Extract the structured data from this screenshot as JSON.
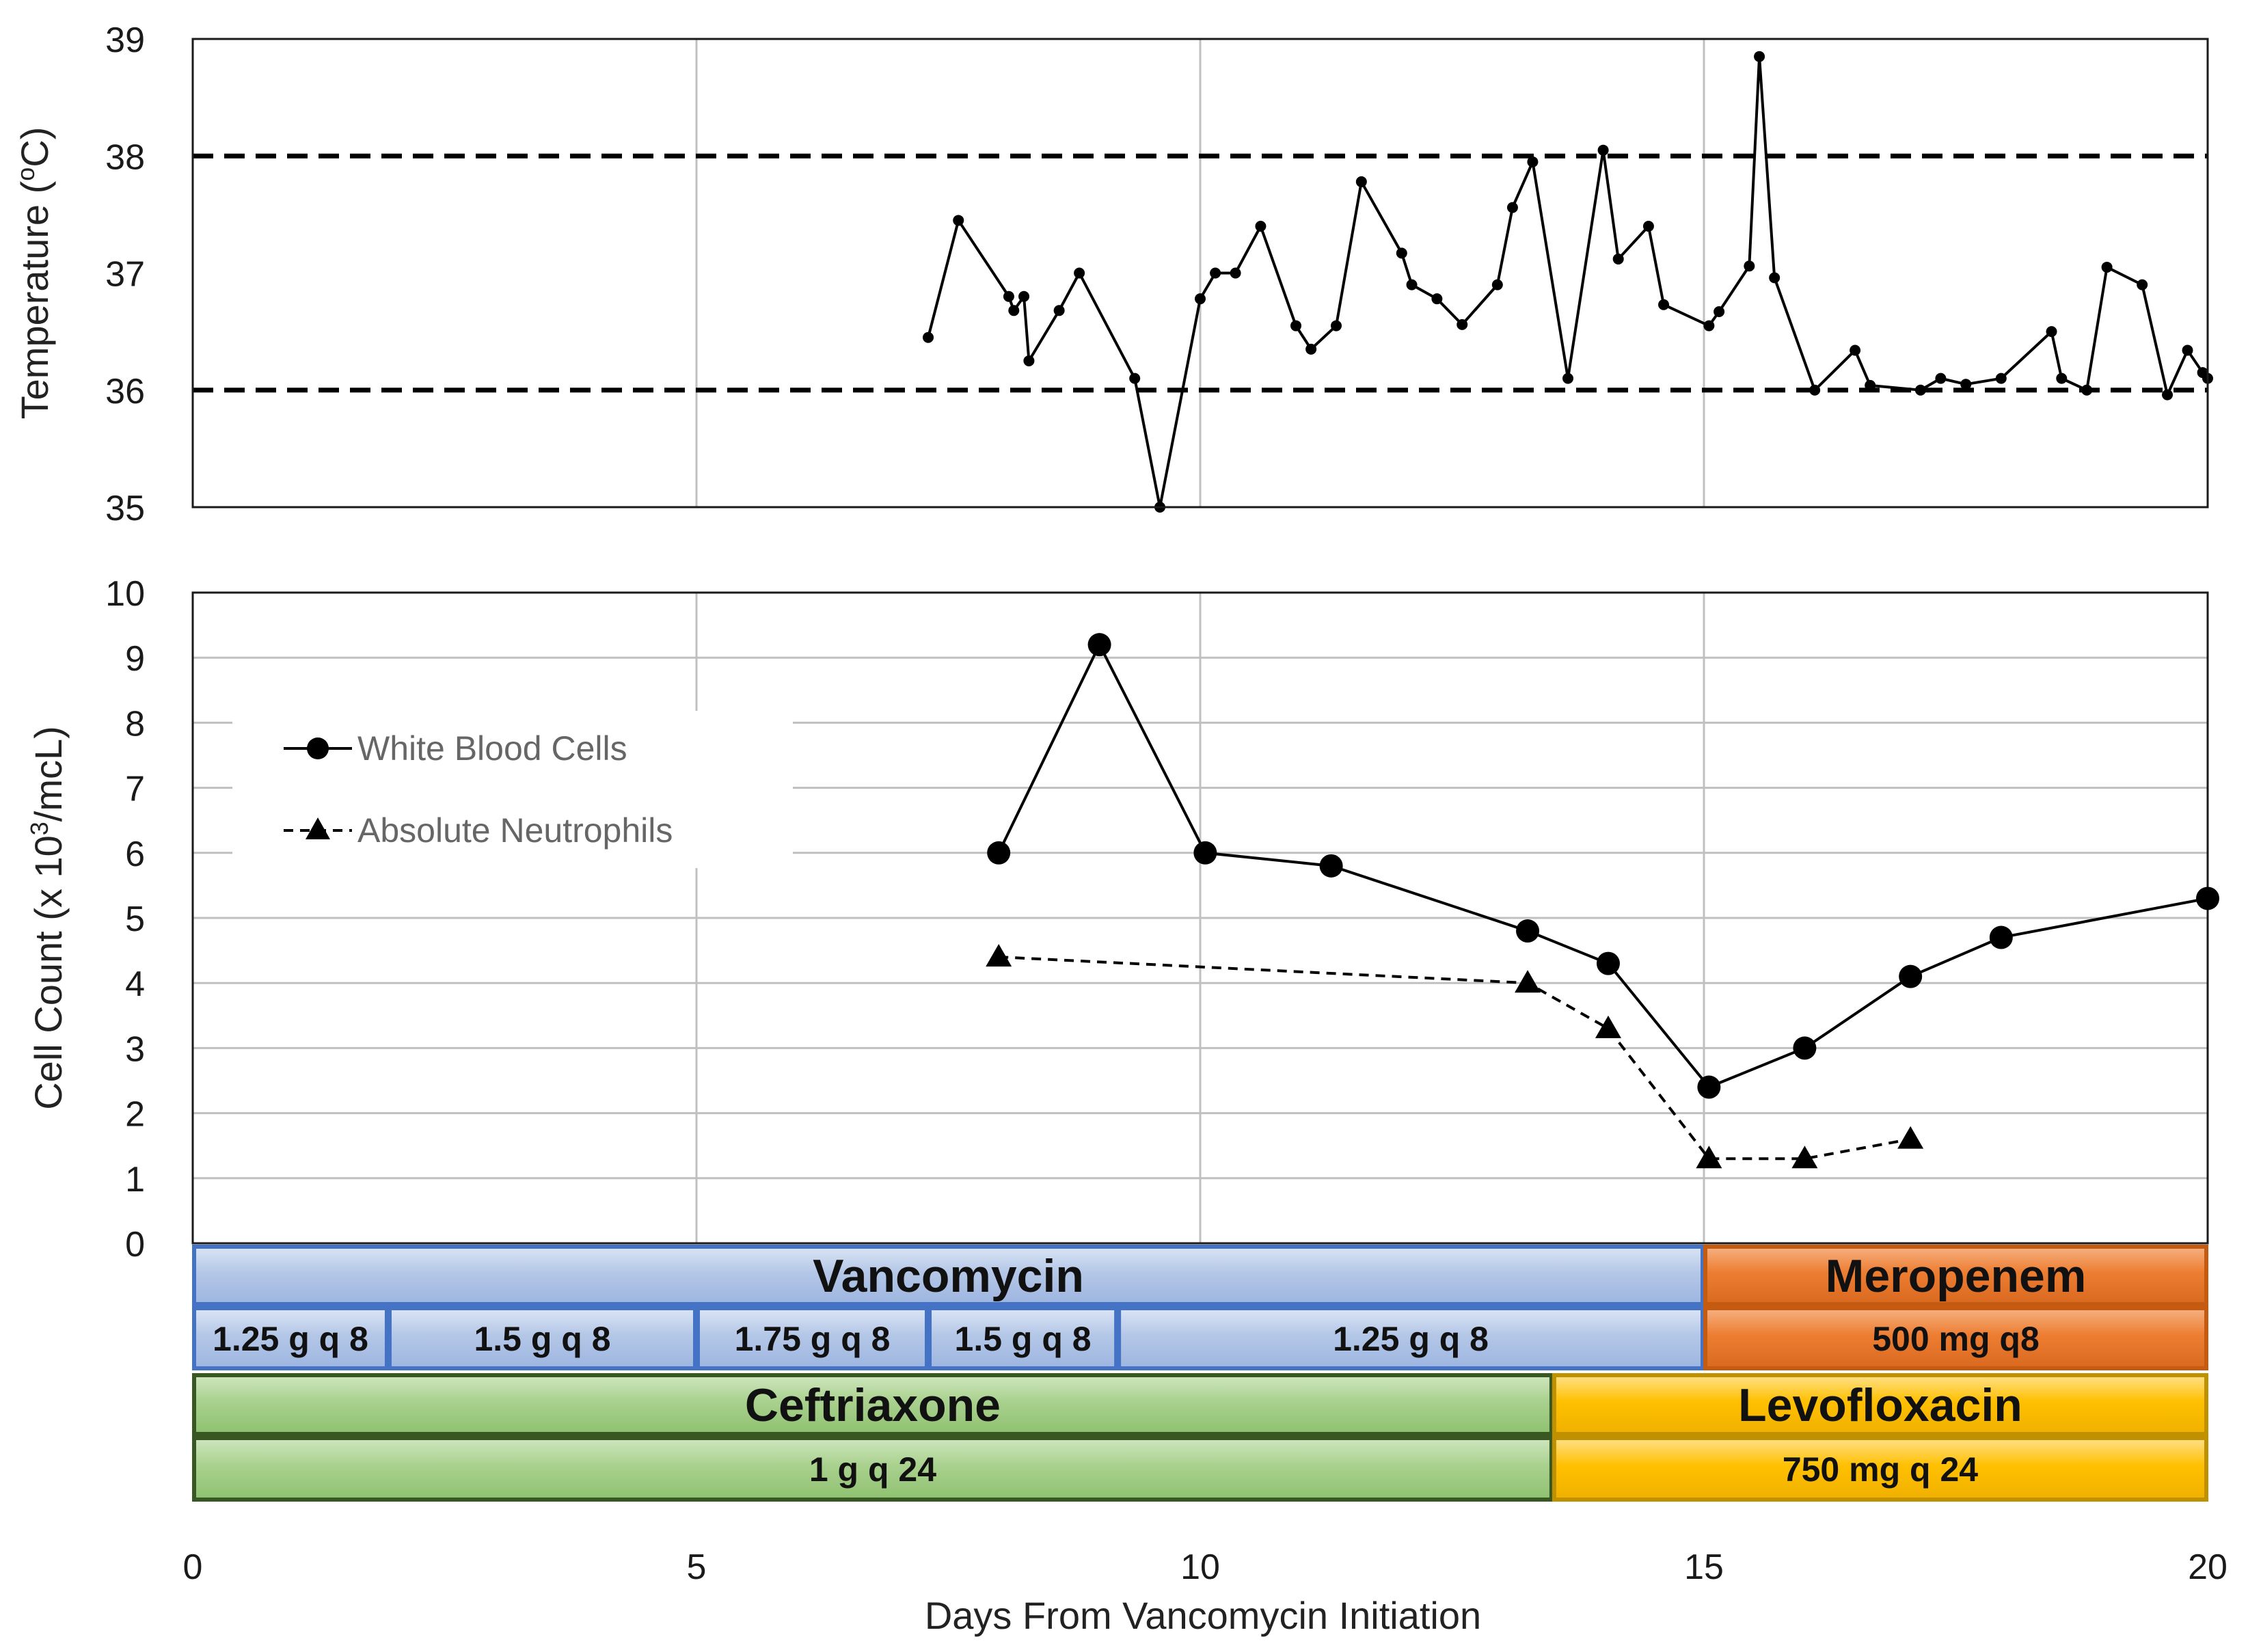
{
  "chart_data": [
    {
      "type": "line",
      "ylabel": "Temperature (",
      "ylabel_sup": "o",
      "ylabel_suffix": "C)",
      "ylim": [
        35,
        39
      ],
      "y_ticks": [
        "35",
        "36",
        "37",
        "38",
        "39"
      ],
      "xlim": [
        0,
        20
      ],
      "grid": true,
      "reference_lines": [
        36,
        38
      ],
      "series": [
        {
          "x": [
            7.3,
            7.6,
            8.1,
            8.15,
            8.25,
            8.3,
            8.6,
            8.8,
            9.35,
            9.6,
            10.0,
            10.15,
            10.35,
            10.6,
            10.95,
            11.1,
            11.35,
            11.6,
            12.0,
            12.1,
            12.35,
            12.6,
            12.95,
            13.1,
            13.3,
            13.65,
            14.0,
            14.15,
            14.45,
            14.6,
            15.05,
            15.15,
            15.45,
            15.55,
            15.7,
            16.1,
            16.5,
            16.65,
            17.15,
            17.35,
            17.6,
            17.95,
            18.45,
            18.55,
            18.8,
            19.0,
            19.35,
            19.6,
            19.8,
            19.95,
            20.0
          ],
          "y": [
            36.45,
            37.45,
            36.8,
            36.68,
            36.8,
            36.25,
            36.68,
            37.0,
            36.1,
            35.0,
            36.78,
            37.0,
            37.0,
            37.4,
            36.55,
            36.35,
            36.55,
            37.78,
            37.17,
            36.9,
            36.78,
            36.56,
            36.9,
            37.56,
            37.95,
            36.1,
            38.05,
            37.12,
            37.4,
            36.73,
            36.55,
            36.67,
            37.06,
            38.85,
            36.96,
            36.0,
            36.34,
            36.04,
            36.0,
            36.1,
            36.05,
            36.1,
            36.5,
            36.1,
            36.0,
            37.05,
            36.9,
            35.96,
            36.34,
            36.15,
            36.1
          ]
        }
      ]
    },
    {
      "type": "line",
      "ylabel": "Cell Count (x 10",
      "ylabel_sup": "3",
      "ylabel_suffix": "/mcL)",
      "xlabel": "Days From Vancomycin Initiation",
      "ylim": [
        0,
        10
      ],
      "y_ticks": [
        "0",
        "1",
        "2",
        "3",
        "4",
        "5",
        "6",
        "7",
        "8",
        "9",
        "10"
      ],
      "xlim": [
        0,
        20
      ],
      "x_ticks": [
        "0",
        "5",
        "10",
        "15",
        "20"
      ],
      "grid": true,
      "legend_position": "upper-left",
      "series": [
        {
          "name": "White Blood Cells",
          "marker": "circle",
          "style": "solid",
          "x": [
            8,
            9,
            10.05,
            11.3,
            13.25,
            14.05,
            15.05,
            16.0,
            17.05,
            17.95,
            20.0
          ],
          "y": [
            6.0,
            9.2,
            6.0,
            5.8,
            4.8,
            4.3,
            2.4,
            3.0,
            4.1,
            4.7,
            5.3
          ]
        },
        {
          "name": "Absolute Neutrophils",
          "marker": "triangle",
          "style": "dashed",
          "x": [
            8,
            13.25,
            14.05,
            15.05,
            16.0,
            17.05
          ],
          "y": [
            4.4,
            4.0,
            3.3,
            1.3,
            1.3,
            1.6
          ]
        }
      ]
    }
  ],
  "therapy": {
    "rows": [
      {
        "bars": [
          {
            "name": "Vancomycin",
            "start": 0,
            "end": 15,
            "theme": "blue"
          },
          {
            "name": "Meropenem",
            "start": 15,
            "end": 20,
            "theme": "orange"
          }
        ]
      },
      {
        "doses": [
          {
            "label": "1.25 g q 8",
            "start": 0,
            "end": 1.94,
            "theme": "blue"
          },
          {
            "label": "1.5 g q 8",
            "start": 1.94,
            "end": 5.0,
            "theme": "blue"
          },
          {
            "label": "1.75 g q 8",
            "start": 5.0,
            "end": 7.3,
            "theme": "blue"
          },
          {
            "label": "1.5 g q 8",
            "start": 7.3,
            "end": 9.18,
            "theme": "blue"
          },
          {
            "label": "1.25 g q 8",
            "start": 9.18,
            "end": 15,
            "theme": "blue"
          },
          {
            "label": "500 mg q8",
            "start": 15,
            "end": 20,
            "theme": "orange"
          }
        ]
      },
      {
        "bars": [
          {
            "name": "Ceftriaxone",
            "start": 0,
            "end": 13.5,
            "theme": "green"
          },
          {
            "name": "Levofloxacin",
            "start": 13.5,
            "end": 20,
            "theme": "yellow"
          }
        ]
      },
      {
        "doses": [
          {
            "label": "1 g q 24",
            "start": 0,
            "end": 13.5,
            "theme": "green"
          },
          {
            "label": "750 mg q 24",
            "start": 13.5,
            "end": 20,
            "theme": "yellow"
          }
        ]
      }
    ],
    "colors": {
      "blue": {
        "fill": "#b4c7e7",
        "border": "#4472c4"
      },
      "orange": {
        "fill": "#ed7d31",
        "border": "#c55a11"
      },
      "green": {
        "fill": "#a9d18e",
        "border": "#385723"
      },
      "yellow": {
        "fill": "#ffc000",
        "border": "#bf9000"
      }
    }
  }
}
